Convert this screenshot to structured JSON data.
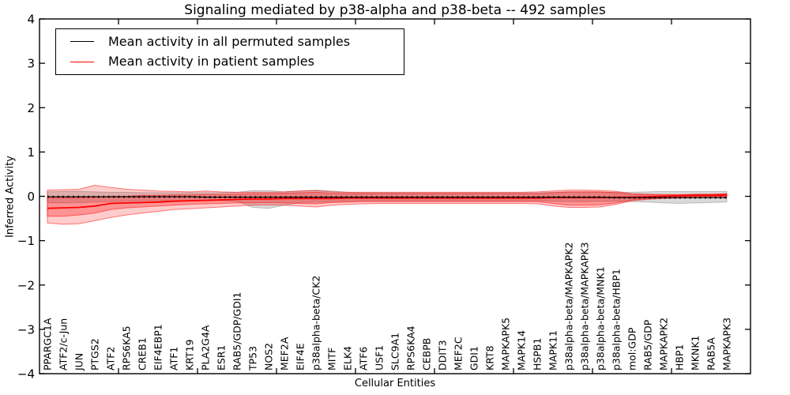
{
  "title": "Signaling mediated by p38-alpha and p38-beta -- 492 samples",
  "axes": {
    "x_label": "Cellular Entities",
    "y_label": "Inferred Activity",
    "y_tick_labels": [
      "4",
      "3",
      "2",
      "1",
      "0",
      "−1",
      "−2",
      "−3",
      "−4"
    ],
    "y_tick_values": [
      4,
      3,
      2,
      1,
      0,
      -1,
      -2,
      -3,
      -4
    ],
    "x_major_tick_units": [
      5,
      10,
      15,
      20,
      25,
      30,
      35,
      40
    ]
  },
  "legend": {
    "entries": [
      {
        "label": "Mean activity in all permuted samples",
        "color": "#000000"
      },
      {
        "label": "Mean activity in patient samples",
        "color": "#ff0000"
      }
    ],
    "position": "upper left"
  },
  "colors": {
    "permuted_line": "#000000",
    "patient_line": "#ff0000",
    "permuted_band_fill": "rgba(128,128,128,0.30)",
    "permuted_band_edge": "rgba(128,128,128,0.45)",
    "patient_band_outer_fill": "rgba(255,0,0,0.20)",
    "patient_band_inner_fill": "rgba(255,0,0,0.28)",
    "patient_band_edge": "rgba(255,0,0,0.50)",
    "spine": "#000000",
    "background": "#ffffff"
  },
  "chart_data": {
    "type": "line",
    "title": "Signaling mediated by p38-alpha and p38-beta -- 492 samples",
    "xlabel": "Cellular Entities",
    "ylabel": "Inferred Activity",
    "ylim": [
      -4,
      4
    ],
    "x_axis_units": 45,
    "grid": false,
    "legend_position": "upper left",
    "categories": [
      "PPARGC1A",
      "ATF2/c-Jun",
      "JUN",
      "PTGS2",
      "ATF2",
      "RPS6KA5",
      "CREB1",
      "EIF4EBP1",
      "ATF1",
      "KRT19",
      "PLA2G4A",
      "ESR1",
      "RAB5/GDP/GDI1",
      "TP53",
      "NOS2",
      "MEF2A",
      "EIF4E",
      "p38alpha-beta/CK2",
      "MITF",
      "ELK4",
      "ATF6",
      "USF1",
      "SLC9A1",
      "RPS6KA4",
      "CEBPB",
      "DDIT3",
      "MEF2C",
      "GDI1",
      "KRT8",
      "MAPKAPK5",
      "MAPK14",
      "HSPB1",
      "MAPK11",
      "p38alpha-beta/MAPKAPK2",
      "p38alpha-beta/MAPKAPK3",
      "p38alpha-beta/MNK1",
      "p38alpha-beta/HBP1",
      "mol:GDP",
      "RAB5/GDP",
      "MAPKAPK2",
      "HBP1",
      "MKNK1",
      "RAB5A",
      "MAPKAPK3"
    ],
    "series": [
      {
        "name": "Mean activity in all permuted samples",
        "color": "#000000",
        "style": "solid-with-dot-markers",
        "values": [
          -0.01,
          -0.01,
          -0.01,
          -0.01,
          -0.01,
          -0.01,
          -0.01,
          -0.01,
          -0.01,
          -0.01,
          -0.02,
          -0.02,
          -0.02,
          -0.02,
          -0.02,
          -0.02,
          -0.02,
          -0.02,
          -0.02,
          -0.02,
          -0.02,
          -0.02,
          -0.02,
          -0.02,
          -0.02,
          -0.02,
          -0.02,
          -0.02,
          -0.02,
          -0.02,
          -0.02,
          -0.02,
          -0.02,
          -0.02,
          -0.02,
          -0.02,
          -0.03,
          -0.03,
          -0.03,
          -0.03,
          -0.03,
          -0.03,
          -0.03,
          -0.03
        ],
        "band_outer": {
          "upper": [
            0.1,
            0.11,
            0.11,
            0.1,
            0.09,
            0.09,
            0.08,
            0.08,
            0.08,
            0.08,
            0.08,
            0.08,
            0.09,
            0.13,
            0.13,
            0.1,
            0.12,
            0.14,
            0.12,
            0.09,
            0.08,
            0.08,
            0.08,
            0.08,
            0.08,
            0.08,
            0.08,
            0.08,
            0.08,
            0.08,
            0.08,
            0.08,
            0.09,
            0.1,
            0.1,
            0.09,
            0.09,
            0.09,
            0.1,
            0.11,
            0.11,
            0.11,
            0.11,
            0.11
          ],
          "lower": [
            -0.14,
            -0.15,
            -0.14,
            -0.13,
            -0.12,
            -0.11,
            -0.1,
            -0.1,
            -0.1,
            -0.1,
            -0.1,
            -0.1,
            -0.11,
            -0.25,
            -0.27,
            -0.2,
            -0.14,
            -0.13,
            -0.12,
            -0.11,
            -0.1,
            -0.1,
            -0.1,
            -0.1,
            -0.1,
            -0.1,
            -0.1,
            -0.1,
            -0.1,
            -0.1,
            -0.1,
            -0.1,
            -0.11,
            -0.12,
            -0.12,
            -0.11,
            -0.11,
            -0.12,
            -0.13,
            -0.15,
            -0.16,
            -0.15,
            -0.14,
            -0.13
          ]
        }
      },
      {
        "name": "Mean activity in patient samples",
        "color": "#ff0000",
        "style": "solid",
        "values": [
          -0.27,
          -0.26,
          -0.25,
          -0.22,
          -0.16,
          -0.15,
          -0.14,
          -0.13,
          -0.11,
          -0.1,
          -0.09,
          -0.08,
          -0.07,
          -0.06,
          -0.06,
          -0.05,
          -0.05,
          -0.05,
          -0.05,
          -0.04,
          -0.04,
          -0.04,
          -0.04,
          -0.04,
          -0.04,
          -0.04,
          -0.04,
          -0.04,
          -0.04,
          -0.04,
          -0.04,
          -0.04,
          -0.03,
          -0.03,
          -0.03,
          -0.03,
          -0.02,
          -0.02,
          -0.01,
          0.0,
          0.01,
          0.02,
          0.02,
          0.03
        ],
        "band_inner": {
          "upper": [
            -0.03,
            -0.03,
            -0.03,
            -0.02,
            0.0,
            0.0,
            0.02,
            0.02,
            0.03,
            0.03,
            0.04,
            0.04,
            0.05,
            0.06,
            0.06,
            0.07,
            0.08,
            0.09,
            0.07,
            0.06,
            0.06,
            0.06,
            0.06,
            0.06,
            0.06,
            0.06,
            0.06,
            0.06,
            0.06,
            0.06,
            0.06,
            0.06,
            0.08,
            0.1,
            0.1,
            0.1,
            0.08,
            0.04,
            0.03,
            0.03,
            0.03,
            0.04,
            0.04,
            0.05
          ],
          "lower": [
            -0.45,
            -0.45,
            -0.42,
            -0.38,
            -0.3,
            -0.26,
            -0.24,
            -0.22,
            -0.2,
            -0.18,
            -0.17,
            -0.16,
            -0.15,
            -0.15,
            -0.14,
            -0.15,
            -0.16,
            -0.17,
            -0.14,
            -0.13,
            -0.12,
            -0.12,
            -0.12,
            -0.12,
            -0.12,
            -0.12,
            -0.12,
            -0.12,
            -0.12,
            -0.12,
            -0.12,
            -0.12,
            -0.16,
            -0.2,
            -0.2,
            -0.19,
            -0.15,
            -0.08,
            -0.05,
            -0.03,
            -0.02,
            -0.01,
            0.0,
            0.0
          ]
        },
        "band_outer": {
          "upper": [
            0.14,
            0.15,
            0.16,
            0.25,
            0.2,
            0.16,
            0.14,
            0.12,
            0.11,
            0.1,
            0.12,
            0.1,
            0.09,
            0.09,
            0.09,
            0.1,
            0.12,
            0.13,
            0.1,
            0.09,
            0.09,
            0.09,
            0.09,
            0.09,
            0.09,
            0.09,
            0.09,
            0.09,
            0.09,
            0.09,
            0.09,
            0.1,
            0.12,
            0.14,
            0.14,
            0.13,
            0.11,
            0.06,
            0.05,
            0.04,
            0.04,
            0.05,
            0.05,
            0.06
          ],
          "lower": [
            -0.6,
            -0.63,
            -0.62,
            -0.55,
            -0.48,
            -0.42,
            -0.38,
            -0.34,
            -0.3,
            -0.28,
            -0.26,
            -0.24,
            -0.22,
            -0.2,
            -0.19,
            -0.2,
            -0.22,
            -0.24,
            -0.2,
            -0.18,
            -0.17,
            -0.16,
            -0.16,
            -0.16,
            -0.16,
            -0.16,
            -0.16,
            -0.16,
            -0.16,
            -0.16,
            -0.16,
            -0.17,
            -0.22,
            -0.25,
            -0.25,
            -0.24,
            -0.18,
            -0.1,
            -0.07,
            -0.05,
            -0.04,
            -0.03,
            -0.02,
            -0.02
          ]
        }
      }
    ]
  }
}
